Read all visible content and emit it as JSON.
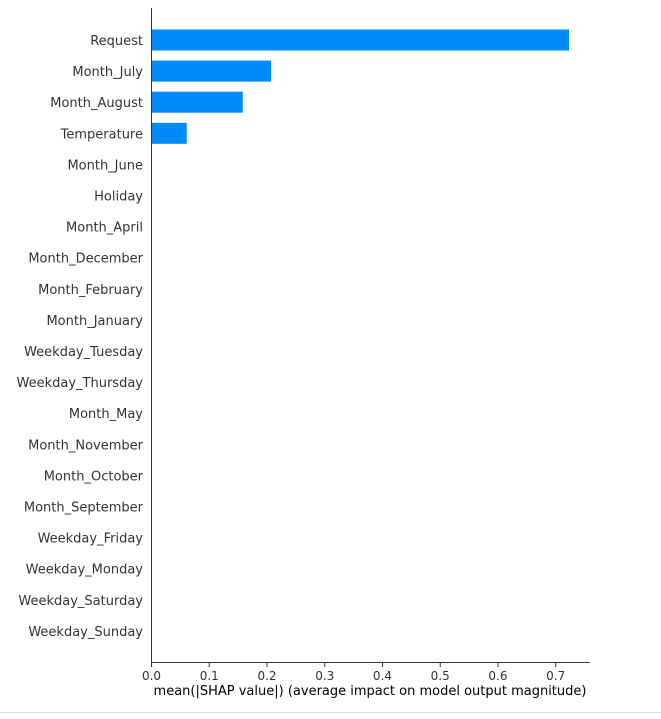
{
  "chart_data": {
    "type": "bar",
    "orientation": "horizontal",
    "categories": [
      "Request",
      "Month_July",
      "Month_August",
      "Temperature",
      "Month_June",
      "Holiday",
      "Month_April",
      "Month_December",
      "Month_February",
      "Month_January",
      "Weekday_Tuesday",
      "Weekday_Thursday",
      "Month_May",
      "Month_November",
      "Month_October",
      "Month_September",
      "Weekday_Friday",
      "Weekday_Monday",
      "Weekday_Saturday",
      "Weekday_Sunday"
    ],
    "values": [
      0.723,
      0.207,
      0.158,
      0.061,
      0,
      0,
      0,
      0,
      0,
      0,
      0,
      0,
      0,
      0,
      0,
      0,
      0,
      0,
      0,
      0
    ],
    "xlabel": "mean(|SHAP value|) (average impact on model output magnitude)",
    "ylabel": "",
    "title": "",
    "xlim": [
      0,
      0.76
    ],
    "xticks": [
      0.0,
      0.1,
      0.2,
      0.3,
      0.4,
      0.5,
      0.6,
      0.7
    ],
    "xtick_labels": [
      "0.0",
      "0.1",
      "0.2",
      "0.3",
      "0.4",
      "0.5",
      "0.6",
      "0.7"
    ],
    "bar_color": "#008bfb",
    "grid": false
  }
}
